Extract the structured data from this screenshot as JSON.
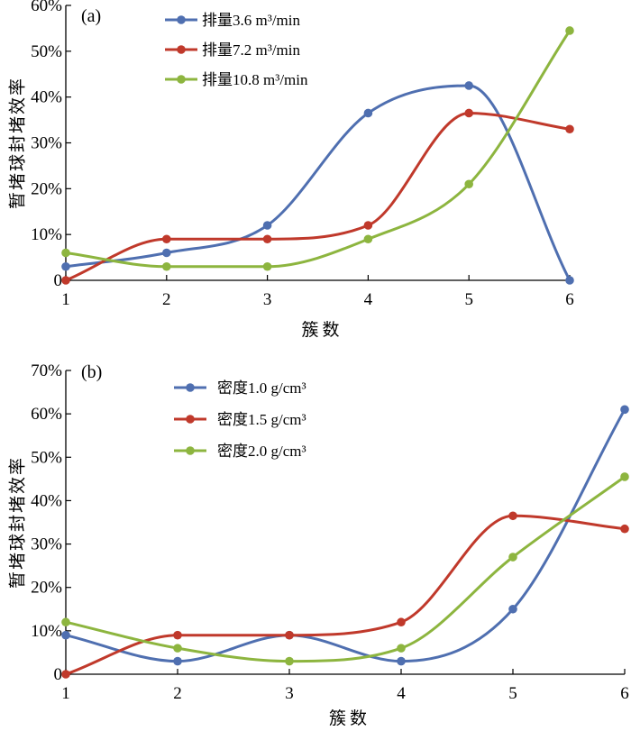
{
  "chart_data": [
    {
      "type": "line",
      "panel_label": "(a)",
      "xlabel": "簇数",
      "ylabel": "暂堵球封堵效率",
      "x": [
        1,
        2,
        3,
        4,
        5,
        6
      ],
      "xticks": [
        "1",
        "2",
        "3",
        "4",
        "5",
        "6"
      ],
      "yticks": [
        "0",
        "10%",
        "20%",
        "30%",
        "40%",
        "50%",
        "60%"
      ],
      "ylim": [
        0,
        60
      ],
      "legend_position": "top-left",
      "series": [
        {
          "name": "排量3.6 m³/min",
          "color": "#4f6fb0",
          "values": [
            3,
            6,
            12,
            36.5,
            42.5,
            0
          ]
        },
        {
          "name": "排量7.2 m³/min",
          "color": "#c0392b",
          "values": [
            0,
            9,
            9,
            12,
            36.5,
            33
          ]
        },
        {
          "name": "排量10.8 m³/min",
          "color": "#8db53f",
          "values": [
            6,
            3,
            3,
            9,
            21,
            54.5
          ]
        }
      ]
    },
    {
      "type": "line",
      "panel_label": "(b)",
      "xlabel": "簇数",
      "ylabel": "暂堵球封堵效率",
      "x": [
        1,
        2,
        3,
        4,
        5,
        6
      ],
      "xticks": [
        "1",
        "2",
        "3",
        "4",
        "5",
        "6"
      ],
      "yticks": [
        "0",
        "10%",
        "20%",
        "30%",
        "40%",
        "50%",
        "60%",
        "70%"
      ],
      "ylim": [
        0,
        70
      ],
      "legend_position": "top-left",
      "series": [
        {
          "name": "密度1.0 g/cm³",
          "color": "#4f6fb0",
          "values": [
            9,
            3,
            9,
            3,
            15,
            61
          ]
        },
        {
          "name": "密度1.5 g/cm³",
          "color": "#c0392b",
          "values": [
            0,
            9,
            9,
            12,
            36.5,
            33.5
          ]
        },
        {
          "name": "密度2.0 g/cm³",
          "color": "#8db53f",
          "values": [
            12,
            6,
            3,
            6,
            27,
            45.5
          ]
        }
      ]
    }
  ]
}
